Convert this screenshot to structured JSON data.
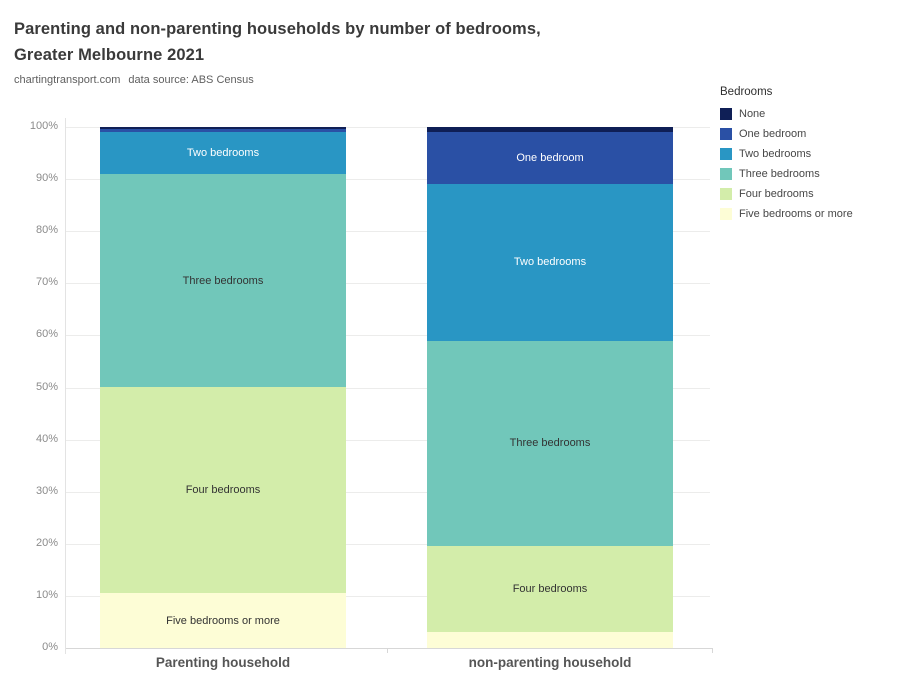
{
  "header": {
    "title_line1": "Parenting and non-parenting households by number of bedrooms,",
    "title_line2": "Greater Melbourne 2021",
    "source_site": "chartingtransport.com",
    "source_note": "data source: ABS Census"
  },
  "chart_data": {
    "type": "bar",
    "stacked": true,
    "orientation": "vertical",
    "unit": "percent",
    "title": "Parenting and non-parenting households by number of bedrooms, Greater Melbourne 2021",
    "subtitle": "chartingtransport.com  data source: ABS Census",
    "grid": true,
    "legend_title": "Bedrooms",
    "legend_position": "top-right",
    "ylim": [
      0,
      100
    ],
    "ytick_labels": [
      "0%",
      "10%",
      "20%",
      "30%",
      "40%",
      "50%",
      "60%",
      "70%",
      "80%",
      "90%",
      "100%"
    ],
    "categories": [
      "Parenting household",
      "non-parenting household"
    ],
    "series": [
      {
        "name": "None",
        "color": "#0f1f56",
        "label_color": "#ffffff",
        "values": [
          0.4,
          1.0
        ],
        "show_label": [
          false,
          false
        ]
      },
      {
        "name": "One bedroom",
        "color": "#2a50a5",
        "label_color": "#ffffff",
        "values": [
          0.6,
          10.0
        ],
        "show_label": [
          false,
          true
        ]
      },
      {
        "name": "Two bedrooms",
        "color": "#2996c4",
        "label_color": "#ffffff",
        "values": [
          8.0,
          30.0
        ],
        "show_label": [
          true,
          true
        ]
      },
      {
        "name": "Three bedrooms",
        "color": "#71c7ba",
        "label_color": "#333333",
        "values": [
          41.0,
          39.5
        ],
        "show_label": [
          true,
          true
        ]
      },
      {
        "name": "Four bedrooms",
        "color": "#d3edaa",
        "label_color": "#333333",
        "values": [
          39.5,
          16.5
        ],
        "show_label": [
          true,
          true
        ]
      },
      {
        "name": "Five bedrooms or more",
        "color": "#fdfdd6",
        "label_color": "#333333",
        "values": [
          10.5,
          3.0
        ],
        "show_label": [
          true,
          false
        ]
      }
    ]
  }
}
